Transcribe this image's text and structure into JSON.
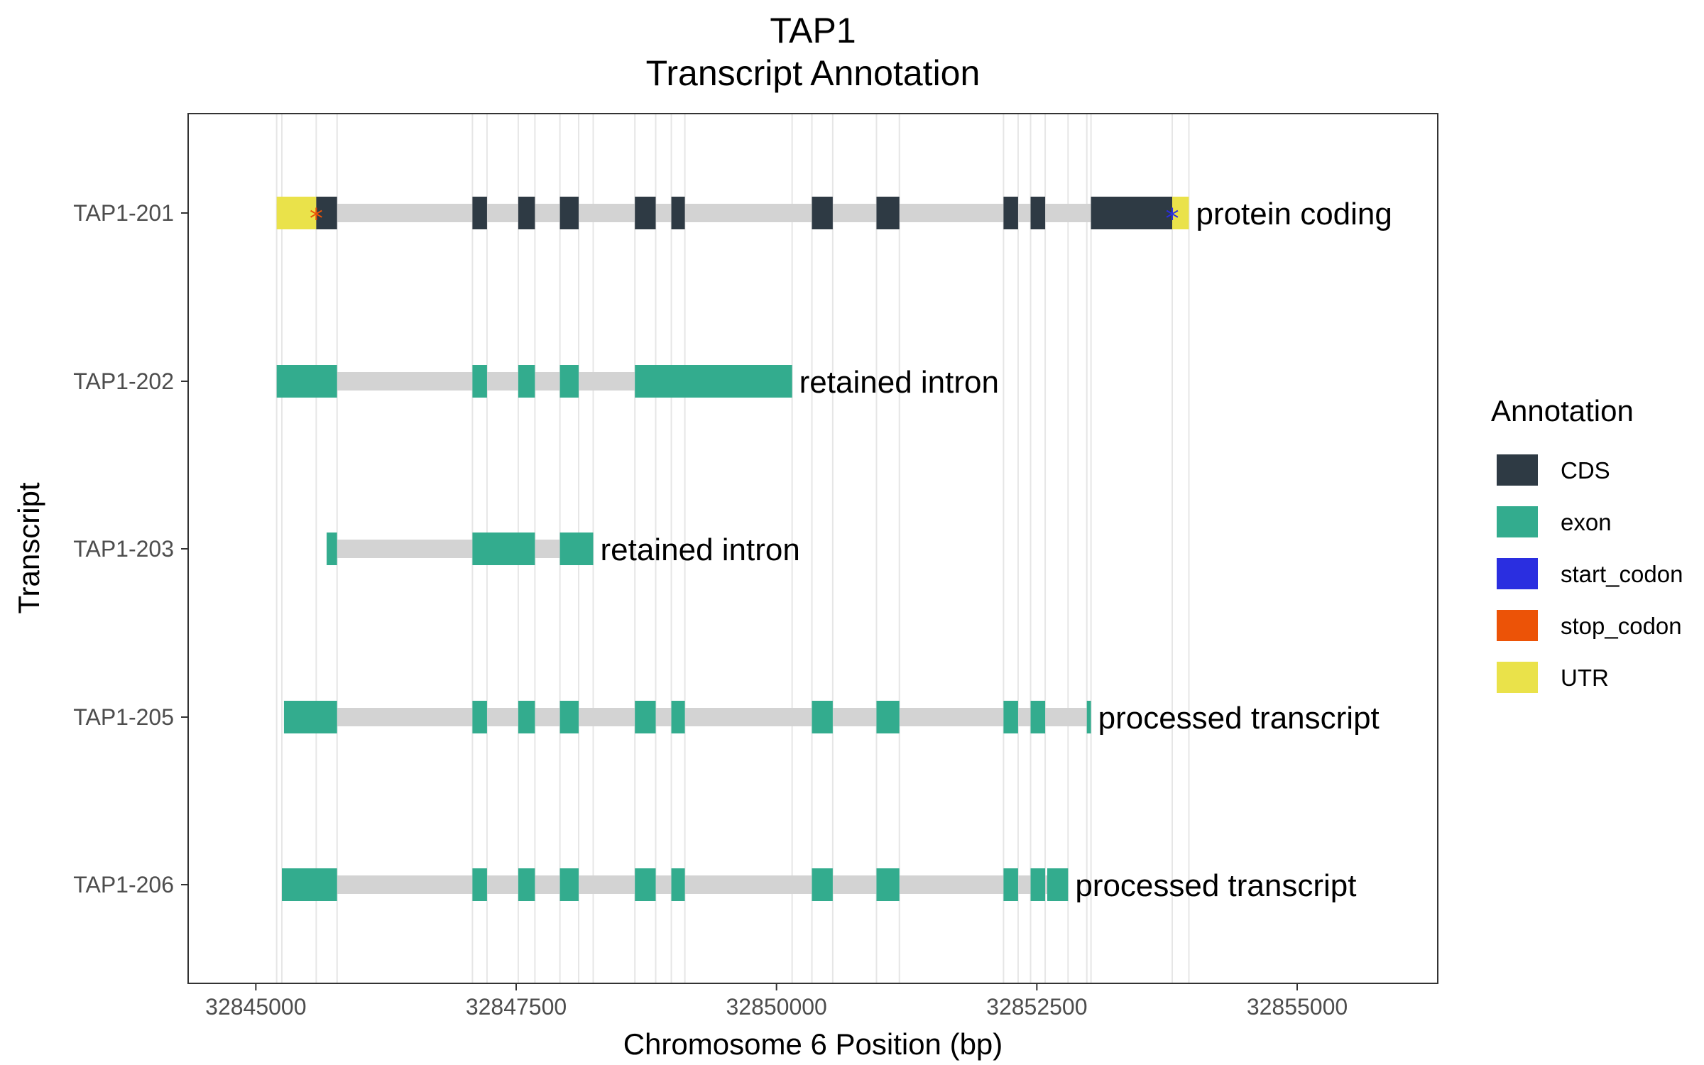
{
  "chart_data": {
    "type": "gene-track",
    "title_lines": [
      "TAP1",
      "Transcript Annotation"
    ],
    "xlabel": "Chromosome 6 Position (bp)",
    "ylabel": "Transcript",
    "xlim": [
      32844350,
      32856350
    ],
    "x_ticks": [
      32845000,
      32847500,
      32850000,
      32852500,
      32855000
    ],
    "x_tick_labels": [
      "32845000",
      "32847500",
      "32850000",
      "32852500",
      "32855000"
    ],
    "grid_lines": [
      32845200,
      32845250,
      32845580,
      32845780,
      32847080,
      32847220,
      32847520,
      32847680,
      32847920,
      32848100,
      32848240,
      32848640,
      32848840,
      32848990,
      32849120,
      32850150,
      32850340,
      32850540,
      32850960,
      32851180,
      32852180,
      32852320,
      32852440,
      32852580,
      32852800,
      32852980,
      32853020,
      32853800,
      32853960
    ],
    "legend_title": "Annotation",
    "legend": [
      {
        "label": "CDS",
        "color": "#2e3a44"
      },
      {
        "label": "exon",
        "color": "#33ac8e"
      },
      {
        "label": "start_codon",
        "color": "#2a2ee0"
      },
      {
        "label": "stop_codon",
        "color": "#ec5307"
      },
      {
        "label": "UTR",
        "color": "#eae24a"
      }
    ],
    "intron_color": "#d3d3d3",
    "transcripts": [
      {
        "name": "TAP1-206",
        "biotype_label": "processed transcript",
        "range": [
          32845250,
          32852800
        ],
        "features": [
          {
            "type": "exon",
            "start": 32845250,
            "end": 32845780
          },
          {
            "type": "exon",
            "start": 32847080,
            "end": 32847220
          },
          {
            "type": "exon",
            "start": 32847520,
            "end": 32847680
          },
          {
            "type": "exon",
            "start": 32847920,
            "end": 32848100
          },
          {
            "type": "exon",
            "start": 32848640,
            "end": 32848840
          },
          {
            "type": "exon",
            "start": 32848990,
            "end": 32849120
          },
          {
            "type": "exon",
            "start": 32850340,
            "end": 32850540
          },
          {
            "type": "exon",
            "start": 32850960,
            "end": 32851180
          },
          {
            "type": "exon",
            "start": 32852180,
            "end": 32852320
          },
          {
            "type": "exon",
            "start": 32852440,
            "end": 32852580
          },
          {
            "type": "exon",
            "start": 32852600,
            "end": 32852800
          }
        ]
      },
      {
        "name": "TAP1-205",
        "biotype_label": "processed transcript",
        "range": [
          32845270,
          32853020
        ],
        "features": [
          {
            "type": "exon",
            "start": 32845270,
            "end": 32845780
          },
          {
            "type": "exon",
            "start": 32847080,
            "end": 32847220
          },
          {
            "type": "exon",
            "start": 32847520,
            "end": 32847680
          },
          {
            "type": "exon",
            "start": 32847920,
            "end": 32848100
          },
          {
            "type": "exon",
            "start": 32848640,
            "end": 32848840
          },
          {
            "type": "exon",
            "start": 32848990,
            "end": 32849120
          },
          {
            "type": "exon",
            "start": 32850340,
            "end": 32850540
          },
          {
            "type": "exon",
            "start": 32850960,
            "end": 32851180
          },
          {
            "type": "exon",
            "start": 32852180,
            "end": 32852320
          },
          {
            "type": "exon",
            "start": 32852440,
            "end": 32852580
          },
          {
            "type": "exon",
            "start": 32852980,
            "end": 32853020
          }
        ]
      },
      {
        "name": "TAP1-203",
        "biotype_label": "retained intron",
        "range": [
          32845680,
          32848240
        ],
        "features": [
          {
            "type": "exon",
            "start": 32845680,
            "end": 32845780
          },
          {
            "type": "exon",
            "start": 32847080,
            "end": 32847680
          },
          {
            "type": "exon",
            "start": 32847920,
            "end": 32848240
          }
        ]
      },
      {
        "name": "TAP1-202",
        "biotype_label": "retained intron",
        "range": [
          32845200,
          32850150
        ],
        "features": [
          {
            "type": "exon",
            "start": 32845200,
            "end": 32845780
          },
          {
            "type": "exon",
            "start": 32847080,
            "end": 32847220
          },
          {
            "type": "exon",
            "start": 32847520,
            "end": 32847680
          },
          {
            "type": "exon",
            "start": 32847920,
            "end": 32848100
          },
          {
            "type": "exon",
            "start": 32848640,
            "end": 32850150
          }
        ]
      },
      {
        "name": "TAP1-201",
        "biotype_label": "protein coding",
        "range": [
          32845200,
          32853960
        ],
        "features": [
          {
            "type": "UTR",
            "start": 32845200,
            "end": 32845580
          },
          {
            "type": "CDS",
            "start": 32845580,
            "end": 32845780
          },
          {
            "type": "CDS",
            "start": 32847080,
            "end": 32847220
          },
          {
            "type": "CDS",
            "start": 32847520,
            "end": 32847680
          },
          {
            "type": "CDS",
            "start": 32847920,
            "end": 32848100
          },
          {
            "type": "CDS",
            "start": 32848640,
            "end": 32848840
          },
          {
            "type": "CDS",
            "start": 32848990,
            "end": 32849120
          },
          {
            "type": "CDS",
            "start": 32850340,
            "end": 32850540
          },
          {
            "type": "CDS",
            "start": 32850960,
            "end": 32851180
          },
          {
            "type": "CDS",
            "start": 32852180,
            "end": 32852320
          },
          {
            "type": "CDS",
            "start": 32852440,
            "end": 32852580
          },
          {
            "type": "CDS",
            "start": 32853020,
            "end": 32853800
          },
          {
            "type": "UTR",
            "start": 32853800,
            "end": 32853960
          }
        ],
        "markers": [
          {
            "type": "stop_codon",
            "pos": 32845580,
            "glyph": "*"
          },
          {
            "type": "start_codon",
            "pos": 32853800,
            "glyph": "*"
          }
        ]
      }
    ]
  }
}
